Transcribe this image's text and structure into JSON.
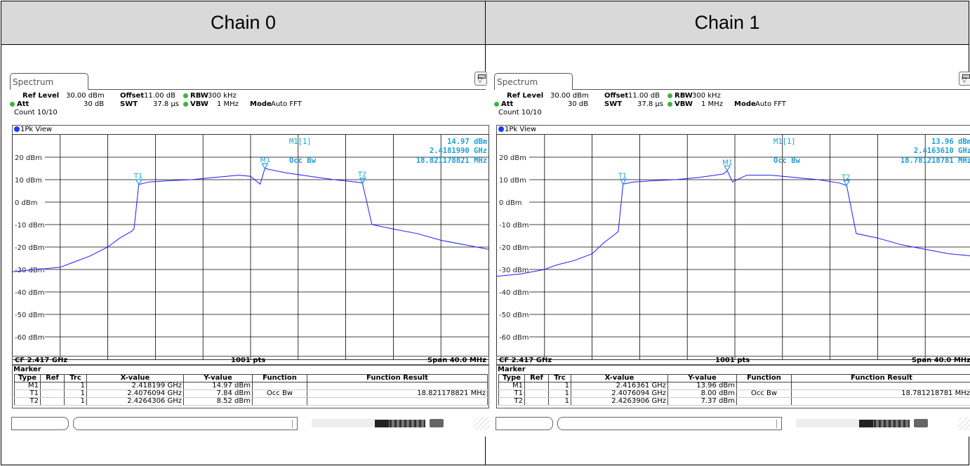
{
  "chart_data": [
    {
      "type": "line",
      "column_title": "Chain 0",
      "tab_label": "Spectrum",
      "settings": {
        "ref_level_label": "Ref Level",
        "ref_level": "30.00 dBm",
        "offset_label": "Offset",
        "offset": "11.00 dB",
        "rbw_label": "RBW",
        "rbw": "300 kHz",
        "att_label": "Att",
        "att": "30 dB",
        "swt_label": "SWT",
        "swt": "37.8 µs",
        "vbw_label": "VBW",
        "vbw": "1 MHz",
        "mode_label": "Mode",
        "mode": "Auto FFT",
        "count": "Count 10/10"
      },
      "view_label": "1Pk View",
      "y_ticks": [
        20,
        10,
        0,
        -10,
        -20,
        -30,
        -40,
        -50,
        -60
      ],
      "y_tick_labels": [
        "20 dBm",
        "10 dBm",
        "0 dBm",
        "-10 dBm",
        "-20 dBm",
        "-30 dBm",
        "-40 dBm",
        "-50 dBm",
        "-60 dBm"
      ],
      "ylim": [
        -70,
        30
      ],
      "xlim": [
        2.397,
        2.437
      ],
      "center_label": "CF 2.417 GHz",
      "points_label": "1001 pts",
      "span_label": "Span 40.0 MHz",
      "marker_readout": {
        "name": "M1[1]",
        "level": "14.97 dBm",
        "freq": "2.4181990 GHz",
        "occ_label": "Occ Bw",
        "occ_value": "18.821178821 MHz"
      },
      "markers": [
        {
          "label": "M1",
          "x": 2.418199,
          "y": 14.97
        },
        {
          "label": "T1",
          "x": 2.4076094,
          "y": 7.84
        },
        {
          "label": "T2",
          "x": 2.4264306,
          "y": 8.52
        }
      ],
      "trace": [
        [
          2.397,
          -31
        ],
        [
          2.399,
          -30
        ],
        [
          2.401,
          -29
        ],
        [
          2.402,
          -27
        ],
        [
          2.4035,
          -24
        ],
        [
          2.405,
          -20
        ],
        [
          2.406,
          -16
        ],
        [
          2.407,
          -13
        ],
        [
          2.4072,
          -12
        ],
        [
          2.4076,
          7.84
        ],
        [
          2.4085,
          9
        ],
        [
          2.41,
          9.5
        ],
        [
          2.412,
          10
        ],
        [
          2.414,
          11
        ],
        [
          2.416,
          12
        ],
        [
          2.417,
          11.5
        ],
        [
          2.4178,
          8
        ],
        [
          2.418199,
          14.97
        ],
        [
          2.42,
          13
        ],
        [
          2.422,
          11.5
        ],
        [
          2.424,
          10
        ],
        [
          2.4258,
          9
        ],
        [
          2.4264,
          8.52
        ],
        [
          2.4272,
          -10
        ],
        [
          2.429,
          -12
        ],
        [
          2.431,
          -14
        ],
        [
          2.433,
          -17
        ],
        [
          2.435,
          -19
        ],
        [
          2.437,
          -21
        ]
      ],
      "marker_table": {
        "title": "Marker",
        "headers": [
          "Type",
          "Ref",
          "Trc",
          "X-value",
          "Y-value",
          "Function",
          "Function Result"
        ],
        "rows": [
          [
            "M1",
            "",
            "1",
            "2.418199 GHz",
            "14.97 dBm",
            "",
            ""
          ],
          [
            "T1",
            "",
            "1",
            "2.4076094 GHz",
            "7.84 dBm",
            "Occ Bw",
            "18.821178821 MHz"
          ],
          [
            "T2",
            "",
            "1",
            "2.4264306 GHz",
            "8.52 dBm",
            "",
            ""
          ]
        ]
      }
    },
    {
      "type": "line",
      "column_title": "Chain 1",
      "tab_label": "Spectrum",
      "settings": {
        "ref_level_label": "Ref Level",
        "ref_level": "30.00 dBm",
        "offset_label": "Offset",
        "offset": "11.00 dB",
        "rbw_label": "RBW",
        "rbw": "300 kHz",
        "att_label": "Att",
        "att": "30 dB",
        "swt_label": "SWT",
        "swt": "37.8 µs",
        "vbw_label": "VBW",
        "vbw": "1 MHz",
        "mode_label": "Mode",
        "mode": "Auto FFT",
        "count": "Count 10/10"
      },
      "view_label": "1Pk View",
      "y_ticks": [
        20,
        10,
        0,
        -10,
        -20,
        -30,
        -40,
        -50,
        -60
      ],
      "y_tick_labels": [
        "20 dBm",
        "10 dBm",
        "0 dBm",
        "-10 dBm",
        "-20 dBm",
        "-30 dBm",
        "-40 dBm",
        "-50 dBm",
        "-60 dBm"
      ],
      "ylim": [
        -70,
        30
      ],
      "xlim": [
        2.397,
        2.437
      ],
      "center_label": "CF 2.417 GHz",
      "points_label": "1001 pts",
      "span_label": "Span 40.0 MHz",
      "marker_readout": {
        "name": "M1[1]",
        "level": "13.96 dBm",
        "freq": "2.4163610 GHz",
        "occ_label": "Occ Bw",
        "occ_value": "18.781218781 MHz"
      },
      "markers": [
        {
          "label": "M1",
          "x": 2.416361,
          "y": 13.96
        },
        {
          "label": "T1",
          "x": 2.4076094,
          "y": 8.0
        },
        {
          "label": "T2",
          "x": 2.4263906,
          "y": 7.37
        }
      ],
      "trace": [
        [
          2.397,
          -33
        ],
        [
          2.399,
          -32
        ],
        [
          2.401,
          -30
        ],
        [
          2.402,
          -28
        ],
        [
          2.4035,
          -26
        ],
        [
          2.405,
          -23
        ],
        [
          2.406,
          -18
        ],
        [
          2.407,
          -14
        ],
        [
          2.4072,
          -13
        ],
        [
          2.4076,
          8.0
        ],
        [
          2.4085,
          9
        ],
        [
          2.41,
          9.5
        ],
        [
          2.412,
          10
        ],
        [
          2.414,
          11
        ],
        [
          2.416,
          12.5
        ],
        [
          2.416361,
          13.96
        ],
        [
          2.4168,
          9
        ],
        [
          2.418,
          12
        ],
        [
          2.42,
          12
        ],
        [
          2.422,
          11
        ],
        [
          2.424,
          10
        ],
        [
          2.4258,
          8.5
        ],
        [
          2.4264,
          7.37
        ],
        [
          2.4272,
          -14
        ],
        [
          2.429,
          -16
        ],
        [
          2.431,
          -19
        ],
        [
          2.433,
          -21
        ],
        [
          2.435,
          -23
        ],
        [
          2.437,
          -24
        ]
      ],
      "marker_table": {
        "title": "Marker",
        "headers": [
          "Type",
          "Ref",
          "Trc",
          "X-value",
          "Y-value",
          "Function",
          "Function Result"
        ],
        "rows": [
          [
            "M1",
            "",
            "1",
            "2.416361 GHz",
            "13.96 dBm",
            "",
            ""
          ],
          [
            "T1",
            "",
            "1",
            "2.4076094 GHz",
            "8.00 dBm",
            "Occ Bw",
            "18.781218781 MHz"
          ],
          [
            "T2",
            "",
            "1",
            "2.4263906 GHz",
            "7.37 dBm",
            "",
            ""
          ]
        ]
      }
    }
  ],
  "colors": {
    "trace": "#1a1aff",
    "marker": "#1a9fd8",
    "header_bg": "#d9d9d9",
    "grid": "#000000",
    "status_green": "#3db53d"
  }
}
